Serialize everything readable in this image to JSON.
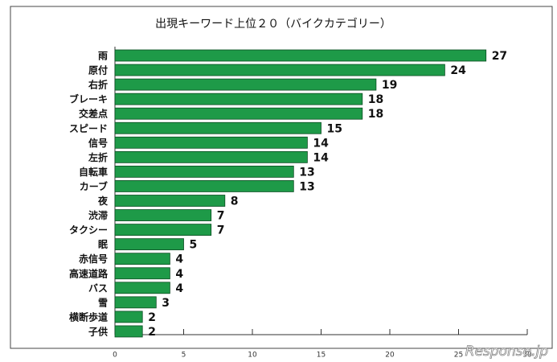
{
  "chart_data": {
    "type": "barh",
    "title": "出現キーワード上位２０（バイクカテゴリー）",
    "categories": [
      "雨",
      "原付",
      "右折",
      "ブレーキ",
      "交差点",
      "スピード",
      "信号",
      "左折",
      "自転車",
      "カーブ",
      "夜",
      "渋滞",
      "タクシー",
      "眠",
      "赤信号",
      "高速道路",
      "バス",
      "雪",
      "横断歩道",
      "子供"
    ],
    "values": [
      27,
      24,
      19,
      18,
      18,
      15,
      14,
      14,
      13,
      13,
      8,
      7,
      7,
      5,
      4,
      4,
      4,
      3,
      2,
      2
    ],
    "color": "#1e9a48",
    "xlim": [
      0,
      30
    ],
    "xticks": [
      0,
      5,
      10,
      15,
      20,
      25,
      30
    ],
    "watermark": "Response.jp"
  }
}
